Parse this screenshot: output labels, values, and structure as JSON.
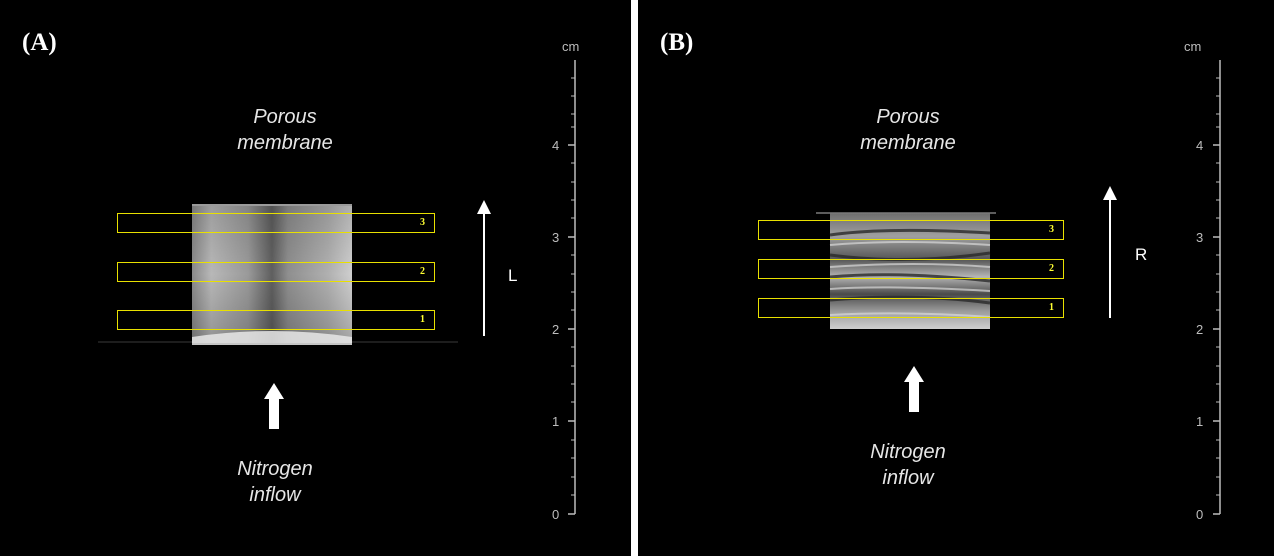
{
  "panels": [
    {
      "label": "(A)",
      "top_caption": [
        "Porous",
        "membrane"
      ],
      "bottom_caption": [
        "Nitrogen",
        "inflow"
      ],
      "direction_label": "L",
      "roi_labels": [
        "3",
        "2",
        "1"
      ],
      "scale": {
        "unit": "cm",
        "ticks": [
          "4",
          "3",
          "2",
          "1",
          "0"
        ]
      }
    },
    {
      "label": "(B)",
      "top_caption": [
        "Porous",
        "membrane"
      ],
      "bottom_caption": [
        "Nitrogen",
        "inflow"
      ],
      "direction_label": "R",
      "roi_labels": [
        "3",
        "2",
        "1"
      ],
      "scale": {
        "unit": "cm",
        "ticks": [
          "4",
          "3",
          "2",
          "1",
          "0"
        ]
      }
    }
  ],
  "colors": {
    "background": "#000000",
    "roi_outline": "#e8e000",
    "roi_number": "#ffff33",
    "text": "#ffffff"
  }
}
